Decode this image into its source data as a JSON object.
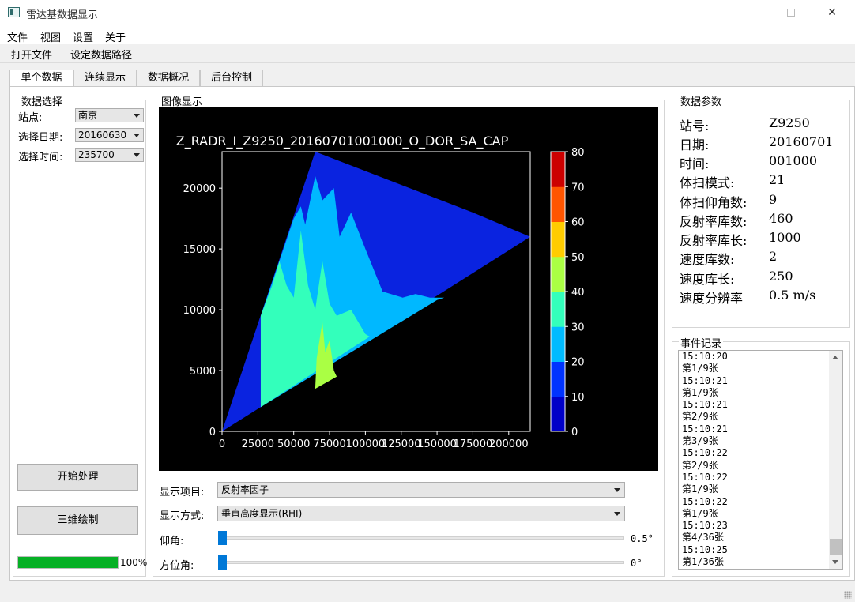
{
  "window": {
    "title": "雷达基数据显示"
  },
  "menu": [
    "文件",
    "视图",
    "设置",
    "关于"
  ],
  "toolbar": [
    "打开文件",
    "设定数据路径"
  ],
  "tabs": [
    "单个数据",
    "连续显示",
    "数据概况",
    "后台控制"
  ],
  "data_select": {
    "title": "数据选择",
    "station_label": "站点:",
    "station_value": "南京",
    "date_label": "选择日期:",
    "date_value": "20160630",
    "time_label": "选择时间:",
    "time_value": "235700"
  },
  "buttons": {
    "process": "开始处理",
    "plot3d": "三维绘制"
  },
  "progress": {
    "value": 100,
    "text": "100%"
  },
  "image_panel": {
    "title": "图像显示",
    "item_label": "显示项目:",
    "item_value": "反射率因子",
    "mode_label": "显示方式:",
    "mode_value": "垂直高度显示(RHI)",
    "elevation_label": "仰角:",
    "elevation_value": "0.5°",
    "azimuth_label": "方位角:",
    "azimuth_value": "0°"
  },
  "chart_data": {
    "type": "heatmap",
    "title": "Z_RADR_I_Z9250_20160701001000_O_DOR_SA_CAP",
    "xlabel": "",
    "ylabel": "",
    "x_ticks": [
      0,
      25000,
      50000,
      75000,
      100000,
      125000,
      150000,
      175000,
      200000
    ],
    "y_ticks": [
      0,
      5000,
      10000,
      15000,
      20000
    ],
    "xlim": [
      0,
      215000
    ],
    "ylim": [
      0,
      23000
    ],
    "colorbar_ticks": [
      0,
      10,
      20,
      30,
      40,
      50,
      60,
      70,
      80
    ],
    "colorbar_colors": [
      "#0000c8",
      "#0033ff",
      "#00bbff",
      "#33ffbb",
      "#aaff44",
      "#ffcc00",
      "#ff5500",
      "#cc0000"
    ],
    "regions": [
      {
        "level": 10,
        "color": "#0a23e0",
        "points": [
          [
            0,
            0
          ],
          [
            65000,
            23000
          ],
          [
            175000,
            18000
          ],
          [
            215000,
            16000
          ],
          [
            27000,
            2000
          ],
          [
            0,
            0
          ]
        ]
      },
      {
        "level": 20,
        "color": "#00b8ff",
        "points": [
          [
            27000,
            9500
          ],
          [
            40000,
            14000
          ],
          [
            50000,
            17500
          ],
          [
            55000,
            18500
          ],
          [
            58000,
            17000
          ],
          [
            65000,
            21000
          ],
          [
            70000,
            19000
          ],
          [
            78000,
            20000
          ],
          [
            82000,
            16000
          ],
          [
            90000,
            18000
          ],
          [
            100000,
            15000
          ],
          [
            112000,
            11500
          ],
          [
            126000,
            11000
          ],
          [
            135000,
            11300
          ],
          [
            145000,
            11000
          ],
          [
            155000,
            11000
          ],
          [
            150000,
            10800
          ],
          [
            27000,
            2000
          ]
        ]
      },
      {
        "level": 30,
        "color": "#33ffbb",
        "points": [
          [
            27000,
            9500
          ],
          [
            35000,
            12000
          ],
          [
            40000,
            14000
          ],
          [
            45000,
            12000
          ],
          [
            50000,
            11000
          ],
          [
            55000,
            16500
          ],
          [
            60000,
            12000
          ],
          [
            65000,
            10000
          ],
          [
            70000,
            14000
          ],
          [
            75000,
            10500
          ],
          [
            80000,
            9500
          ],
          [
            90000,
            10000
          ],
          [
            100000,
            8000
          ],
          [
            103000,
            7800
          ],
          [
            27000,
            2000
          ]
        ]
      },
      {
        "level": 40,
        "color": "#aaff44",
        "points": [
          [
            65000,
            3500
          ],
          [
            66000,
            6000
          ],
          [
            70000,
            9000
          ],
          [
            72000,
            6500
          ],
          [
            75000,
            7500
          ],
          [
            78000,
            5000
          ],
          [
            80000,
            4500
          ],
          [
            65000,
            3500
          ]
        ]
      }
    ]
  },
  "params": {
    "title": "数据参数",
    "items": [
      {
        "key": "站号:",
        "value": "Z9250"
      },
      {
        "key": "日期:",
        "value": "20160701"
      },
      {
        "key": "时间:",
        "value": "001000"
      },
      {
        "key": "体扫模式:",
        "value": "21"
      },
      {
        "key": "体扫仰角数:",
        "value": "9"
      },
      {
        "key": "反射率库数:",
        "value": "460"
      },
      {
        "key": "反射率库长:",
        "value": "1000"
      },
      {
        "key": "速度库数:",
        "value": "2"
      },
      {
        "key": "速度库长:",
        "value": "250"
      },
      {
        "key": "速度分辨率",
        "value": "0.5 m/s"
      }
    ]
  },
  "events": {
    "title": "事件记录",
    "lines": [
      "15:10:20",
      "第1/9张",
      "15:10:21",
      "第1/9张",
      "15:10:21",
      "第2/9张",
      "15:10:21",
      "第3/9张",
      "15:10:22",
      "第2/9张",
      "15:10:22",
      "第1/9张",
      "15:10:22",
      "第1/9张",
      "15:10:23",
      "第4/36张",
      "15:10:25",
      "第1/36张"
    ]
  }
}
